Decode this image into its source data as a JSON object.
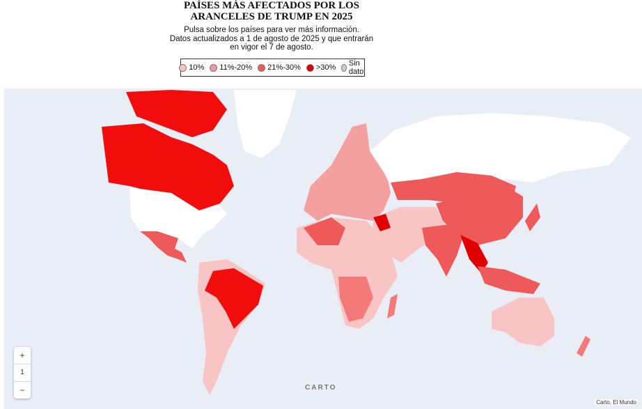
{
  "header": {
    "title_lines": [
      "PAÍSES MÁS AFECTADOS POR LOS",
      "ARANCELES DE TRUMP EN 2025"
    ],
    "subtitle_lines": [
      "Pulsa sobre los países para ver más información.",
      "Datos actualizados a 1 de agosto de 2025 y que entrarán",
      "en vigor el 7 de agosto."
    ]
  },
  "legend": [
    {
      "label": "10%",
      "color": "#f8c4c4"
    },
    {
      "label": "11%-20%",
      "color": "#f29a9a"
    },
    {
      "label": "21%-30%",
      "color": "#ee5a5a"
    },
    {
      "label": ">30%",
      "color": "#e00000"
    },
    {
      "label": "Sin dato",
      "color": "#cccccc"
    }
  ],
  "map_controls": {
    "zoom_in": "+",
    "zoom_level": "1",
    "zoom_out": "−",
    "logo": "CARTO",
    "attribution": "Carto, El Mundo"
  }
}
